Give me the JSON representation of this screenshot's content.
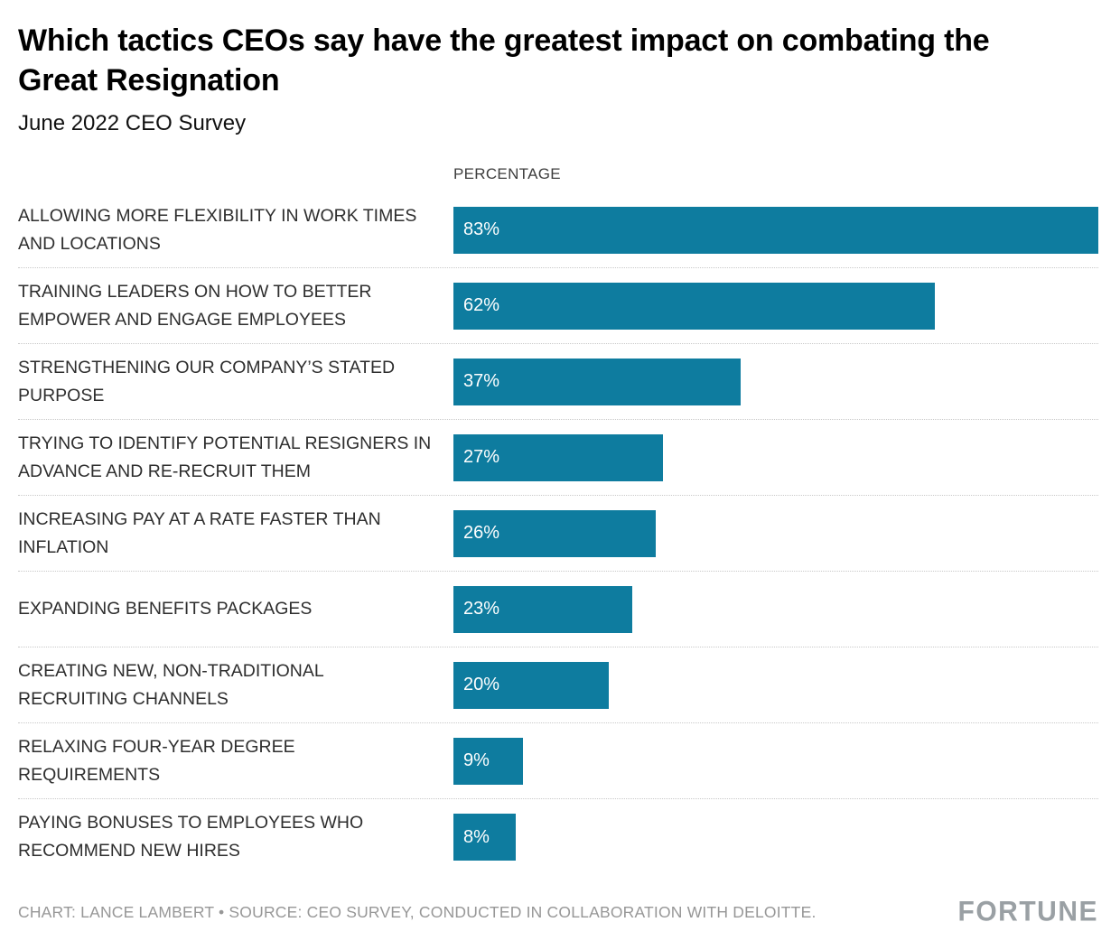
{
  "chart_data": {
    "type": "bar",
    "orientation": "horizontal",
    "title": "Which tactics CEOs say have the greatest impact on combating the Great Resignation",
    "subtitle": "June 2022 CEO Survey",
    "value_axis_header": "PERCENTAGE",
    "categories": [
      "ALLOWING MORE FLEXIBILITY IN WORK TIMES AND LOCATIONS",
      "TRAINING LEADERS ON HOW TO BETTER EMPOWER AND ENGAGE EMPLOYEES",
      "STRENGTHENING OUR COMPANY’S STATED PURPOSE",
      "TRYING TO IDENTIFY POTENTIAL RESIGNERS IN ADVANCE AND RE-RECRUIT THEM",
      "INCREASING PAY AT A RATE FASTER THAN INFLATION",
      "EXPANDING BENEFITS PACKAGES",
      "CREATING NEW, NON-TRADITIONAL RECRUITING CHANNELS",
      "RELAXING FOUR-YEAR DEGREE REQUIREMENTS",
      "PAYING BONUSES TO EMPLOYEES WHO RECOMMEND NEW HIRES"
    ],
    "values": [
      83,
      62,
      37,
      27,
      26,
      23,
      20,
      9,
      8
    ],
    "value_labels": [
      "83%",
      "62%",
      "37%",
      "27%",
      "26%",
      "23%",
      "20%",
      "9%",
      "8%"
    ],
    "xlim": [
      0,
      83
    ],
    "axis_visible": false,
    "grid": false,
    "legend": "none",
    "bar_color": "#0e7c9f",
    "value_label_color": "#ffffff"
  },
  "footer": {
    "credit": "CHART: LANCE LAMBERT • SOURCE: CEO SURVEY, CONDUCTED IN COLLABORATION WITH DELOITTE.",
    "brand": "FORTUNE"
  }
}
